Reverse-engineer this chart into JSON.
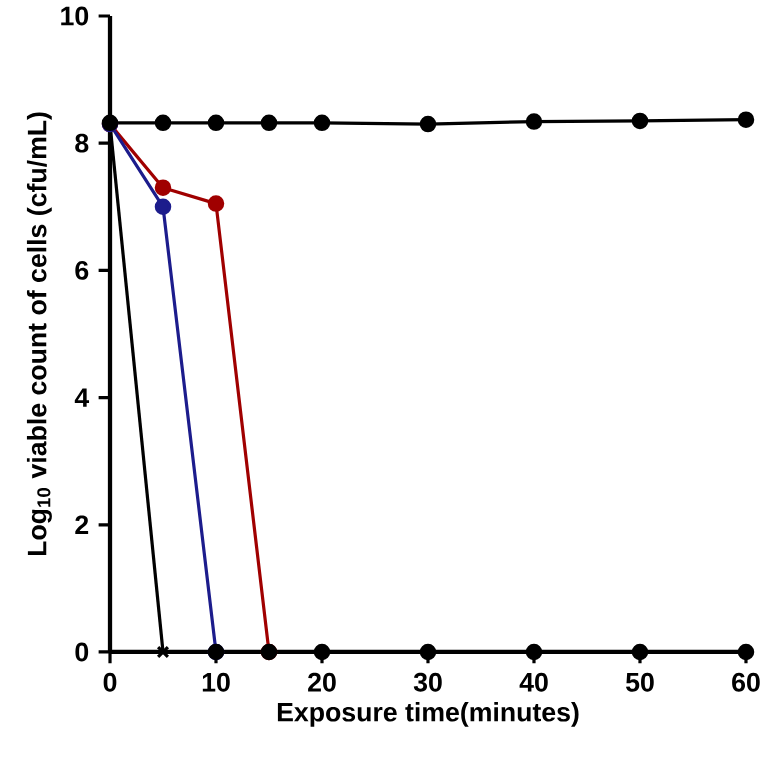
{
  "chart_data": {
    "type": "line",
    "xlabel": "Exposure time(minutes)",
    "ylabel": "Log$_{10}$ viable count of cells (cfu/mL)",
    "xlim": [
      0,
      60
    ],
    "ylim": [
      0,
      10
    ],
    "xticks": [
      0,
      10,
      20,
      30,
      40,
      50,
      60
    ],
    "yticks": [
      0,
      2,
      4,
      6,
      8,
      10
    ],
    "grid": false,
    "line_style": "solid",
    "series": [
      {
        "color": "#a00000",
        "marker": "circle",
        "x": [
          0,
          5,
          10,
          15
        ],
        "values": [
          8.3,
          7.3,
          7.05,
          0
        ]
      },
      {
        "color": "#1c1c8c",
        "marker": "circle",
        "x": [
          0,
          5,
          10
        ],
        "values": [
          8.3,
          7.0,
          0
        ]
      },
      {
        "color": "#000000",
        "marker": "cross",
        "x": [
          0,
          5
        ],
        "values": [
          8.3,
          0
        ]
      },
      {
        "type": "scatter",
        "color": "#000000",
        "marker": "circle",
        "x": [
          10,
          15,
          20,
          30,
          40,
          50,
          60
        ],
        "values": [
          0,
          0,
          0,
          0,
          0,
          0,
          0
        ]
      },
      {
        "color": "#000000",
        "marker": "circle",
        "x": [
          0,
          5,
          10,
          15,
          20,
          30,
          40,
          50,
          60
        ],
        "values": [
          8.32,
          8.32,
          8.32,
          8.32,
          8.32,
          8.3,
          8.34,
          8.35,
          8.37
        ]
      }
    ]
  }
}
